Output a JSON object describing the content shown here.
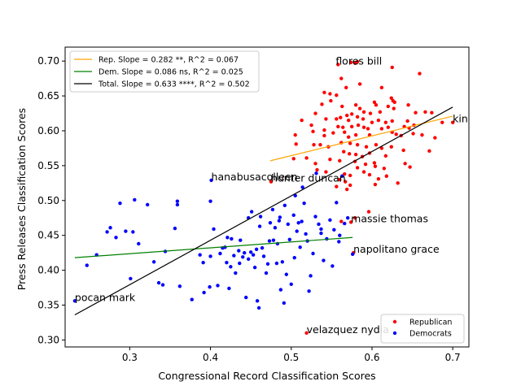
{
  "chart_data": {
    "type": "scatter",
    "title": "",
    "xlabel": "Congressional Record Classification Scores",
    "ylabel": "Press Releases Classification Scores",
    "xlim": [
      0.22,
      0.72
    ],
    "ylim": [
      0.29,
      0.72
    ],
    "xticks": [
      0.3,
      0.4,
      0.5,
      0.6,
      0.7
    ],
    "yticks": [
      0.3,
      0.35,
      0.4,
      0.45,
      0.5,
      0.55,
      0.6,
      0.65,
      0.7
    ],
    "xtick_labels": [
      "0.3",
      "0.4",
      "0.5",
      "0.6",
      "0.7"
    ],
    "ytick_labels": [
      "0.30",
      "0.35",
      "0.40",
      "0.45",
      "0.50",
      "0.55",
      "0.60",
      "0.65",
      "0.70"
    ],
    "grid": false,
    "series": [
      {
        "name": "Republican",
        "color": "#ff0000",
        "points": [
          [
            0.558,
            0.695
          ],
          [
            0.574,
            0.698
          ],
          [
            0.582,
            0.699
          ],
          [
            0.625,
            0.691
          ],
          [
            0.659,
            0.682
          ],
          [
            0.562,
            0.675
          ],
          [
            0.568,
            0.662
          ],
          [
            0.585,
            0.667
          ],
          [
            0.612,
            0.662
          ],
          [
            0.624,
            0.647
          ],
          [
            0.628,
            0.641
          ],
          [
            0.548,
            0.653
          ],
          [
            0.541,
            0.655
          ],
          [
            0.556,
            0.651
          ],
          [
            0.603,
            0.641
          ],
          [
            0.626,
            0.643
          ],
          [
            0.645,
            0.637
          ],
          [
            0.654,
            0.626
          ],
          [
            0.666,
            0.627
          ],
          [
            0.674,
            0.626
          ],
          [
            0.549,
            0.643
          ],
          [
            0.538,
            0.638
          ],
          [
            0.563,
            0.635
          ],
          [
            0.58,
            0.637
          ],
          [
            0.585,
            0.632
          ],
          [
            0.605,
            0.637
          ],
          [
            0.62,
            0.635
          ],
          [
            0.627,
            0.632
          ],
          [
            0.59,
            0.627
          ],
          [
            0.598,
            0.625
          ],
          [
            0.61,
            0.627
          ],
          [
            0.569,
            0.622
          ],
          [
            0.575,
            0.624
          ],
          [
            0.582,
            0.62
          ],
          [
            0.53,
            0.625
          ],
          [
            0.543,
            0.617
          ],
          [
            0.556,
            0.617
          ],
          [
            0.561,
            0.619
          ],
          [
            0.571,
            0.615
          ],
          [
            0.589,
            0.617
          ],
          [
            0.608,
            0.615
          ],
          [
            0.617,
            0.612
          ],
          [
            0.625,
            0.614
          ],
          [
            0.644,
            0.614
          ],
          [
            0.652,
            0.608
          ],
          [
            0.6,
            0.612
          ],
          [
            0.513,
            0.615
          ],
          [
            0.525,
            0.608
          ],
          [
            0.527,
            0.599
          ],
          [
            0.541,
            0.601
          ],
          [
            0.558,
            0.606
          ],
          [
            0.564,
            0.605
          ],
          [
            0.575,
            0.606
          ],
          [
            0.583,
            0.608
          ],
          [
            0.59,
            0.605
          ],
          [
            0.595,
            0.603
          ],
          [
            0.612,
            0.603
          ],
          [
            0.62,
            0.605
          ],
          [
            0.64,
            0.606
          ],
          [
            0.646,
            0.604
          ],
          [
            0.651,
            0.596
          ],
          [
            0.662,
            0.594
          ],
          [
            0.687,
            0.612
          ],
          [
            0.505,
            0.594
          ],
          [
            0.541,
            0.593
          ],
          [
            0.552,
            0.597
          ],
          [
            0.566,
            0.598
          ],
          [
            0.571,
            0.591
          ],
          [
            0.58,
            0.594
          ],
          [
            0.597,
            0.594
          ],
          [
            0.625,
            0.598
          ],
          [
            0.63,
            0.595
          ],
          [
            0.636,
            0.593
          ],
          [
            0.678,
            0.59
          ],
          [
            0.506,
            0.581
          ],
          [
            0.528,
            0.58
          ],
          [
            0.536,
            0.58
          ],
          [
            0.546,
            0.577
          ],
          [
            0.562,
            0.583
          ],
          [
            0.573,
            0.582
          ],
          [
            0.582,
            0.58
          ],
          [
            0.593,
            0.577
          ],
          [
            0.605,
            0.58
          ],
          [
            0.612,
            0.575
          ],
          [
            0.624,
            0.577
          ],
          [
            0.639,
            0.572
          ],
          [
            0.671,
            0.571
          ],
          [
            0.565,
            0.57
          ],
          [
            0.572,
            0.567
          ],
          [
            0.58,
            0.566
          ],
          [
            0.588,
            0.563
          ],
          [
            0.597,
            0.568
          ],
          [
            0.617,
            0.564
          ],
          [
            0.503,
            0.56
          ],
          [
            0.519,
            0.561
          ],
          [
            0.548,
            0.559
          ],
          [
            0.56,
            0.557
          ],
          [
            0.579,
            0.556
          ],
          [
            0.592,
            0.552
          ],
          [
            0.603,
            0.554
          ],
          [
            0.641,
            0.553
          ],
          [
            0.647,
            0.548
          ],
          [
            0.53,
            0.553
          ],
          [
            0.582,
            0.547
          ],
          [
            0.604,
            0.549
          ],
          [
            0.615,
            0.546
          ],
          [
            0.532,
            0.544
          ],
          [
            0.543,
            0.541
          ],
          [
            0.566,
            0.538
          ],
          [
            0.573,
            0.536
          ],
          [
            0.59,
            0.541
          ],
          [
            0.597,
            0.537
          ],
          [
            0.608,
            0.531
          ],
          [
            0.618,
            0.535
          ],
          [
            0.475,
            0.527
          ],
          [
            0.56,
            0.53
          ],
          [
            0.567,
            0.527
          ],
          [
            0.573,
            0.522
          ],
          [
            0.604,
            0.523
          ],
          [
            0.632,
            0.525
          ],
          [
            0.556,
            0.52
          ],
          [
            0.569,
            0.516
          ],
          [
            0.579,
            0.475
          ],
          [
            0.562,
            0.47
          ],
          [
            0.596,
            0.484
          ],
          [
            0.574,
            0.469
          ],
          [
            0.577,
            0.425
          ],
          [
            0.519,
            0.31
          ],
          [
            0.7,
            0.612
          ],
          [
            0.579,
            0.697
          ]
        ]
      },
      {
        "name": "Democrats",
        "color": "#0000ff",
        "points": [
          [
            0.232,
            0.356
          ],
          [
            0.247,
            0.407
          ],
          [
            0.259,
            0.422
          ],
          [
            0.272,
            0.455
          ],
          [
            0.276,
            0.461
          ],
          [
            0.283,
            0.447
          ],
          [
            0.288,
            0.496
          ],
          [
            0.295,
            0.456
          ],
          [
            0.301,
            0.388
          ],
          [
            0.304,
            0.455
          ],
          [
            0.306,
            0.501
          ],
          [
            0.311,
            0.438
          ],
          [
            0.322,
            0.494
          ],
          [
            0.33,
            0.412
          ],
          [
            0.336,
            0.382
          ],
          [
            0.341,
            0.379
          ],
          [
            0.344,
            0.427
          ],
          [
            0.356,
            0.46
          ],
          [
            0.359,
            0.494
          ],
          [
            0.359,
            0.499
          ],
          [
            0.362,
            0.377
          ],
          [
            0.377,
            0.358
          ],
          [
            0.387,
            0.422
          ],
          [
            0.391,
            0.411
          ],
          [
            0.392,
            0.368
          ],
          [
            0.399,
            0.376
          ],
          [
            0.4,
            0.499
          ],
          [
            0.4,
            0.42
          ],
          [
            0.401,
            0.529
          ],
          [
            0.404,
            0.459
          ],
          [
            0.409,
            0.378
          ],
          [
            0.412,
            0.424
          ],
          [
            0.415,
            0.432
          ],
          [
            0.418,
            0.433
          ],
          [
            0.42,
            0.411
          ],
          [
            0.421,
            0.447
          ],
          [
            0.423,
            0.374
          ],
          [
            0.425,
            0.405
          ],
          [
            0.426,
            0.445
          ],
          [
            0.429,
            0.421
          ],
          [
            0.431,
            0.396
          ],
          [
            0.435,
            0.428
          ],
          [
            0.436,
            0.41
          ],
          [
            0.437,
            0.443
          ],
          [
            0.44,
            0.419
          ],
          [
            0.442,
            0.425
          ],
          [
            0.444,
            0.361
          ],
          [
            0.447,
            0.416
          ],
          [
            0.45,
            0.426
          ],
          [
            0.451,
            0.484
          ],
          [
            0.453,
            0.422
          ],
          [
            0.455,
            0.404
          ],
          [
            0.457,
            0.43
          ],
          [
            0.458,
            0.356
          ],
          [
            0.46,
            0.346
          ],
          [
            0.461,
            0.463
          ],
          [
            0.462,
            0.477
          ],
          [
            0.464,
            0.432
          ],
          [
            0.466,
            0.42
          ],
          [
            0.469,
            0.396
          ],
          [
            0.471,
            0.409
          ],
          [
            0.473,
            0.442
          ],
          [
            0.474,
            0.468
          ],
          [
            0.477,
            0.487
          ],
          [
            0.478,
            0.443
          ],
          [
            0.48,
            0.461
          ],
          [
            0.482,
            0.41
          ],
          [
            0.483,
            0.438
          ],
          [
            0.485,
            0.471
          ],
          [
            0.486,
            0.476
          ],
          [
            0.487,
            0.372
          ],
          [
            0.489,
            0.412
          ],
          [
            0.491,
            0.353
          ],
          [
            0.492,
            0.493
          ],
          [
            0.494,
            0.394
          ],
          [
            0.496,
            0.466
          ],
          [
            0.498,
            0.444
          ],
          [
            0.5,
            0.38
          ],
          [
            0.503,
            0.479
          ],
          [
            0.504,
            0.418
          ],
          [
            0.505,
            0.507
          ],
          [
            0.507,
            0.456
          ],
          [
            0.509,
            0.468
          ],
          [
            0.511,
            0.433
          ],
          [
            0.513,
            0.47
          ],
          [
            0.514,
            0.519
          ],
          [
            0.516,
            0.496
          ],
          [
            0.518,
            0.452
          ],
          [
            0.52,
            0.442
          ],
          [
            0.522,
            0.37
          ],
          [
            0.524,
            0.392
          ],
          [
            0.527,
            0.424
          ],
          [
            0.53,
            0.477
          ],
          [
            0.531,
            0.539
          ],
          [
            0.534,
            0.466
          ],
          [
            0.537,
            0.459
          ],
          [
            0.54,
            0.414
          ],
          [
            0.544,
            0.445
          ],
          [
            0.548,
            0.472
          ],
          [
            0.551,
            0.406
          ],
          [
            0.553,
            0.458
          ],
          [
            0.556,
            0.497
          ],
          [
            0.559,
            0.441
          ],
          [
            0.563,
            0.535
          ],
          [
            0.566,
            0.467
          ],
          [
            0.576,
            0.423
          ],
          [
            0.57,
            0.475
          ],
          [
            0.56,
            0.45
          ],
          [
            0.537,
            0.453
          ],
          [
            0.447,
            0.475
          ]
        ]
      }
    ],
    "fit_lines": [
      {
        "name": "Rep. Slope = 0.282 **, R^2 = 0.067",
        "color": "#ffa500",
        "x": [
          0.474,
          0.7
        ],
        "y": [
          0.557,
          0.621
        ]
      },
      {
        "name": "Dem. Slope = 0.086 ns, R^2 = 0.025",
        "color": "#008000",
        "x": [
          0.232,
          0.576
        ],
        "y": [
          0.418,
          0.447
        ]
      },
      {
        "name": "Total. Slope = 0.633 ****, R^2 = 0.502",
        "color": "#000000",
        "x": [
          0.232,
          0.7
        ],
        "y": [
          0.336,
          0.634
        ]
      }
    ],
    "annotations": [
      {
        "text": "flores bill",
        "x": 0.555,
        "y": 0.695
      },
      {
        "text": "king steve",
        "x": 0.7,
        "y": 0.612
      },
      {
        "text": "hanabusacolleen",
        "x": 0.401,
        "y": 0.529
      },
      {
        "text": "hunter duncan",
        "x": 0.475,
        "y": 0.527
      },
      {
        "text": "massie thomas",
        "x": 0.574,
        "y": 0.469
      },
      {
        "text": "napolitano grace",
        "x": 0.577,
        "y": 0.425
      },
      {
        "text": "pocan mark",
        "x": 0.232,
        "y": 0.356
      },
      {
        "text": "velazquez nydia",
        "x": 0.519,
        "y": 0.31
      }
    ],
    "legend_fit_placement": "upper-left",
    "legend_points_placement": "lower-right"
  }
}
